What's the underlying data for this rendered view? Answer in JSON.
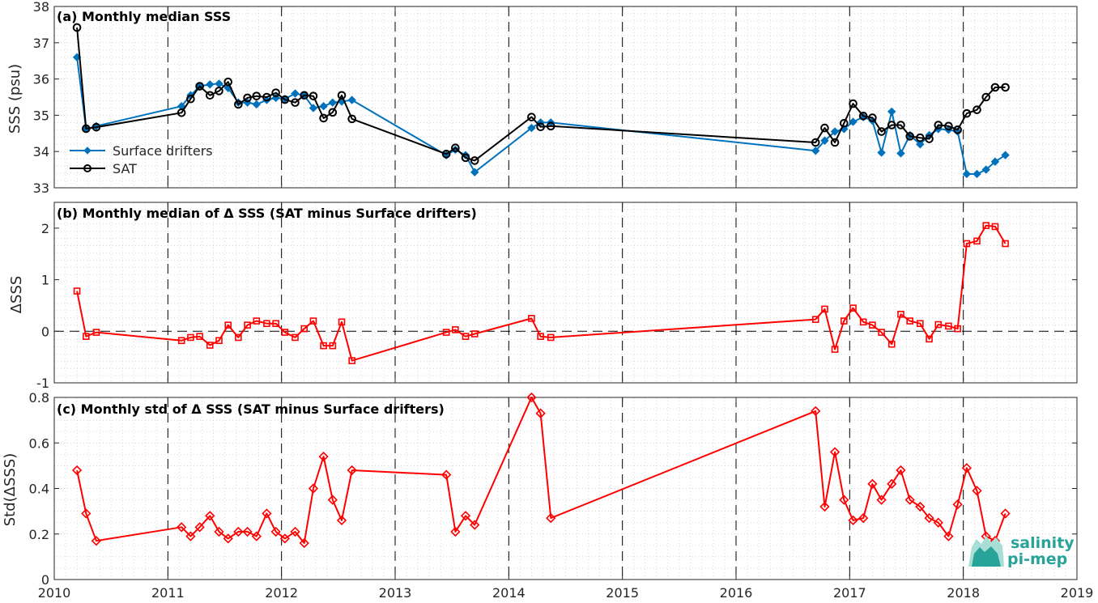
{
  "x_axis": {
    "ticks": [
      "2010",
      "2011",
      "2012",
      "2013",
      "2014",
      "2015",
      "2016",
      "2017",
      "2018",
      "2019"
    ]
  },
  "chart_data": [
    {
      "type": "line",
      "title": "(a) Monthly median SSS",
      "ylabel": "SSS (psu)",
      "ylim": [
        33,
        38
      ],
      "yticks": [
        33,
        34,
        35,
        36,
        37,
        38
      ],
      "xlim": [
        2010,
        2019
      ],
      "grid": true,
      "legend_position": "bottom-left",
      "series": [
        {
          "name": "Surface drifters",
          "color": "#0072BD",
          "marker": "diamond",
          "x": [
            2010.2,
            2010.28,
            2010.37,
            2011.12,
            2011.2,
            2011.28,
            2011.37,
            2011.45,
            2011.53,
            2011.62,
            2011.7,
            2011.78,
            2011.87,
            2011.95,
            2012.03,
            2012.12,
            2012.2,
            2012.28,
            2012.37,
            2012.45,
            2012.53,
            2012.62,
            2013.45,
            2013.53,
            2013.62,
            2013.7,
            2014.2,
            2014.28,
            2014.37,
            2016.7,
            2016.78,
            2016.87,
            2016.95,
            2017.03,
            2017.12,
            2017.2,
            2017.28,
            2017.37,
            2017.45,
            2017.53,
            2017.62,
            2017.7,
            2017.78,
            2017.87,
            2017.95,
            2018.03,
            2018.12,
            2018.2,
            2018.28,
            2018.37
          ],
          "y": [
            36.6,
            34.62,
            34.7,
            35.25,
            35.55,
            35.8,
            35.85,
            35.87,
            35.75,
            35.35,
            35.35,
            35.3,
            35.42,
            35.48,
            35.45,
            35.6,
            35.55,
            35.2,
            35.25,
            35.35,
            35.38,
            35.42,
            33.9,
            34.05,
            33.9,
            33.43,
            34.65,
            34.8,
            34.8,
            34.02,
            34.3,
            34.55,
            34.62,
            34.82,
            34.95,
            34.85,
            33.97,
            35.1,
            33.95,
            34.45,
            34.2,
            34.45,
            34.62,
            34.6,
            34.55,
            33.38,
            33.38,
            33.5,
            33.72,
            33.9
          ]
        },
        {
          "name": "SAT",
          "color": "#000000",
          "marker": "circle",
          "x": [
            2010.2,
            2010.28,
            2010.37,
            2011.12,
            2011.2,
            2011.28,
            2011.37,
            2011.45,
            2011.53,
            2011.62,
            2011.7,
            2011.78,
            2011.87,
            2011.95,
            2012.03,
            2012.12,
            2012.2,
            2012.28,
            2012.37,
            2012.45,
            2012.53,
            2012.62,
            2013.45,
            2013.53,
            2013.62,
            2013.7,
            2014.2,
            2014.28,
            2014.37,
            2016.7,
            2016.78,
            2016.87,
            2016.95,
            2017.03,
            2017.12,
            2017.2,
            2017.28,
            2017.37,
            2017.45,
            2017.53,
            2017.62,
            2017.7,
            2017.78,
            2017.87,
            2017.95,
            2018.03,
            2018.12,
            2018.2,
            2018.28,
            2018.37
          ],
          "y": [
            37.42,
            34.63,
            34.67,
            35.07,
            35.45,
            35.8,
            35.55,
            35.67,
            35.92,
            35.3,
            35.48,
            35.53,
            35.5,
            35.62,
            35.43,
            35.35,
            35.55,
            35.53,
            34.92,
            35.08,
            35.55,
            34.9,
            33.93,
            34.1,
            33.83,
            33.75,
            34.95,
            34.68,
            34.7,
            34.25,
            34.65,
            34.25,
            34.78,
            35.32,
            34.98,
            34.93,
            34.55,
            34.73,
            34.73,
            34.42,
            34.38,
            34.35,
            34.73,
            34.7,
            34.6,
            35.05,
            35.15,
            35.5,
            35.77,
            35.77
          ]
        }
      ]
    },
    {
      "type": "line",
      "title": "(b) Monthly median of Δ SSS (SAT minus Surface drifters)",
      "ylabel": "ΔSSS",
      "ylim": [
        -1,
        2.5
      ],
      "yticks": [
        -1,
        0,
        1,
        2
      ],
      "xlim": [
        2010,
        2019
      ],
      "grid": true,
      "zero_line": true,
      "series": [
        {
          "name": "",
          "color": "#FF0000",
          "marker": "square",
          "x": [
            2010.2,
            2010.28,
            2010.37,
            2011.12,
            2011.2,
            2011.28,
            2011.37,
            2011.45,
            2011.53,
            2011.62,
            2011.7,
            2011.78,
            2011.87,
            2011.95,
            2012.03,
            2012.12,
            2012.2,
            2012.28,
            2012.37,
            2012.45,
            2012.53,
            2012.62,
            2013.45,
            2013.53,
            2013.62,
            2013.7,
            2014.2,
            2014.28,
            2014.37,
            2016.7,
            2016.78,
            2016.87,
            2016.95,
            2017.03,
            2017.12,
            2017.2,
            2017.28,
            2017.37,
            2017.45,
            2017.53,
            2017.62,
            2017.7,
            2017.78,
            2017.87,
            2017.95,
            2018.03,
            2018.12,
            2018.2,
            2018.28,
            2018.37
          ],
          "y": [
            0.78,
            -0.1,
            -0.02,
            -0.18,
            -0.12,
            -0.1,
            -0.27,
            -0.18,
            0.12,
            -0.12,
            0.12,
            0.2,
            0.15,
            0.15,
            -0.02,
            -0.12,
            0.05,
            0.2,
            -0.28,
            -0.28,
            0.18,
            -0.57,
            -0.02,
            0.03,
            -0.1,
            -0.05,
            0.25,
            -0.1,
            -0.12,
            0.23,
            0.43,
            -0.35,
            0.2,
            0.45,
            0.18,
            0.12,
            -0.02,
            -0.25,
            0.33,
            0.2,
            0.15,
            -0.15,
            0.13,
            0.1,
            0.05,
            1.7,
            1.75,
            2.05,
            2.03,
            1.7
          ]
        }
      ]
    },
    {
      "type": "line",
      "title": "(c) Monthly std of Δ SSS (SAT minus Surface drifters)",
      "ylabel": "Std(ΔSSS)",
      "ylim": [
        0,
        0.8
      ],
      "yticks": [
        0,
        0.2,
        0.4,
        0.6,
        0.8
      ],
      "ytick_labels": [
        "0",
        "0.2",
        "0.4",
        "0.6",
        "0.8"
      ],
      "xlim": [
        2010,
        2019
      ],
      "grid": true,
      "series": [
        {
          "name": "",
          "color": "#FF0000",
          "marker": "diamond",
          "x": [
            2010.2,
            2010.28,
            2010.37,
            2011.12,
            2011.2,
            2011.28,
            2011.37,
            2011.45,
            2011.53,
            2011.62,
            2011.7,
            2011.78,
            2011.87,
            2011.95,
            2012.03,
            2012.12,
            2012.2,
            2012.28,
            2012.37,
            2012.45,
            2012.53,
            2012.62,
            2013.45,
            2013.53,
            2013.62,
            2013.7,
            2014.2,
            2014.28,
            2014.37,
            2016.7,
            2016.78,
            2016.87,
            2016.95,
            2017.03,
            2017.12,
            2017.2,
            2017.28,
            2017.37,
            2017.45,
            2017.53,
            2017.62,
            2017.7,
            2017.78,
            2017.87,
            2017.95,
            2018.03,
            2018.12,
            2018.2,
            2018.28,
            2018.37
          ],
          "y": [
            0.48,
            0.29,
            0.17,
            0.23,
            0.19,
            0.23,
            0.28,
            0.21,
            0.18,
            0.21,
            0.21,
            0.19,
            0.29,
            0.21,
            0.18,
            0.21,
            0.16,
            0.4,
            0.54,
            0.35,
            0.26,
            0.48,
            0.46,
            0.21,
            0.28,
            0.24,
            0.8,
            0.73,
            0.27,
            0.74,
            0.32,
            0.56,
            0.35,
            0.26,
            0.27,
            0.42,
            0.35,
            0.42,
            0.48,
            0.35,
            0.32,
            0.27,
            0.25,
            0.19,
            0.33,
            0.49,
            0.39,
            0.19,
            0.17,
            0.29
          ]
        }
      ]
    }
  ],
  "logo": {
    "line1": "salinity",
    "line2": "pi-mep",
    "color": "#27a39a"
  }
}
